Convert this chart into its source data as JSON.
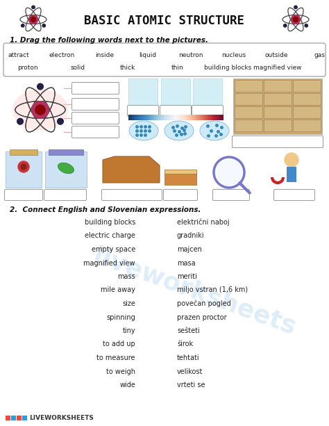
{
  "title": "BASIC ATOMIC STRUCTURE",
  "bg_color": "#ffffff",
  "section1_title": "1. Drag the following words next to the pictures.",
  "section2_title": "2.  Connect English and Slovenian expressions.",
  "word_bank_row1": [
    "attract",
    "electron",
    "inside",
    "liquid",
    "neutron",
    "nucleus",
    "outside",
    "gas"
  ],
  "word_bank_row2": [
    "proton",
    "solid",
    "thick",
    "thin",
    "building blocks",
    "magnified view"
  ],
  "english_words": [
    "building blocks",
    "electric charge",
    "empty space",
    "magnified view",
    "mass",
    "mile away",
    "size",
    "spinning",
    "tiny",
    "to add up",
    "to measure",
    "to weigh",
    "wide"
  ],
  "slovenian_words": [
    "električni naboj",
    "gradniki",
    "majcen",
    "masa",
    "meriti",
    "miljo vstran (1,6 km)",
    "povečan pogled",
    "prazen proctor",
    "sešteti",
    "širok",
    "tehtati",
    "velikost",
    "vrteti se"
  ],
  "title_color": "#111111",
  "section_color": "#111111",
  "word_color": "#222222"
}
